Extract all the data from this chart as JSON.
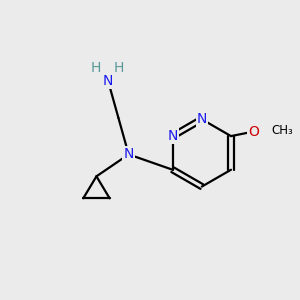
{
  "bg_color": "#ebebeb",
  "atom_colors": {
    "N": "#1a1aee",
    "O": "#cc0000",
    "C": "#000000",
    "H": "#5a9999"
  },
  "bond_color": "#000000",
  "figsize": [
    3.0,
    3.0
  ],
  "dpi": 100
}
